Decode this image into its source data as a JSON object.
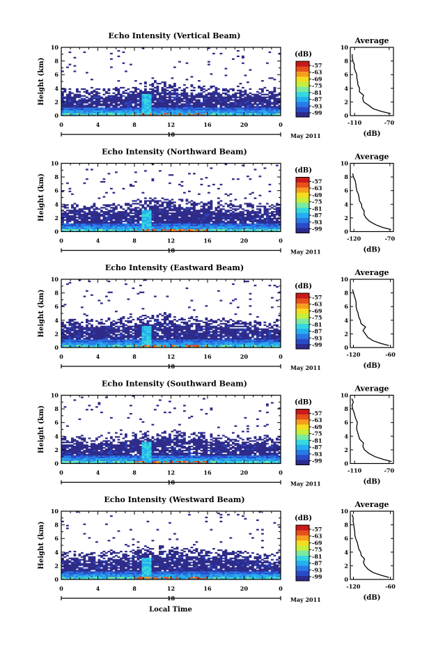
{
  "footer": {
    "month_label": "May 2011",
    "xlabel": "Local Time"
  },
  "colorbar": {
    "unit": "(dB)",
    "tick_labels": [
      "-57",
      "-63",
      "-69",
      "-75",
      "-81",
      "-87",
      "-93",
      "-99"
    ],
    "colors": [
      "#2e2b8a",
      "#2a4bc8",
      "#2a7ae6",
      "#25aef0",
      "#35d8e0",
      "#7aeaa0",
      "#c6ee3c",
      "#f3dd20",
      "#f69e1c",
      "#e6501c",
      "#c81a1a"
    ]
  },
  "chart_data": [
    {
      "type": "heatmap",
      "title": "Echo Intensity (Vertical Beam)",
      "xlabel": "",
      "ylabel": "Height (km)",
      "x_ticks": [
        "0",
        "4",
        "8",
        "12",
        "16",
        "20",
        "0"
      ],
      "date_label": "18",
      "y_ticks": [
        "0",
        "2",
        "4",
        "6",
        "8",
        "10"
      ],
      "xlim": [
        0,
        24
      ],
      "ylim": [
        0,
        10
      ],
      "profile": {
        "title": "Average",
        "xlabel": "(dB)",
        "x_ticks": [
          "-110",
          "-70"
        ],
        "xlim": [
          -115,
          -65
        ],
        "points": [
          [
            -68,
            0.3
          ],
          [
            -78,
            0.6
          ],
          [
            -88,
            1.0
          ],
          [
            -94,
            1.5
          ],
          [
            -99,
            2.0
          ],
          [
            -101,
            2.5
          ],
          [
            -100,
            3.0
          ],
          [
            -104,
            3.5
          ],
          [
            -104,
            4.0
          ],
          [
            -106,
            4.5
          ],
          [
            -107,
            5.0
          ],
          [
            -108,
            5.5
          ],
          [
            -108,
            6.0
          ],
          [
            -109,
            6.5
          ],
          [
            -110,
            7.0
          ],
          [
            -111,
            7.5
          ],
          [
            -112,
            8.0
          ],
          [
            -113,
            8.5
          ],
          [
            -113,
            9.0
          ]
        ]
      }
    },
    {
      "type": "heatmap",
      "title": "Echo Intensity (Northward Beam)",
      "xlabel": "",
      "ylabel": "Height (km)",
      "x_ticks": [
        "0",
        "4",
        "8",
        "12",
        "16",
        "20",
        "0"
      ],
      "date_label": "18",
      "y_ticks": [
        "0",
        "2",
        "4",
        "6",
        "8",
        "10"
      ],
      "xlim": [
        0,
        24
      ],
      "ylim": [
        0,
        10
      ],
      "profile": {
        "title": "Average",
        "xlabel": "(dB)",
        "x_ticks": [
          "-120",
          "-70"
        ],
        "xlim": [
          -125,
          -65
        ],
        "points": [
          [
            -68,
            0.3
          ],
          [
            -80,
            0.6
          ],
          [
            -90,
            1.0
          ],
          [
            -98,
            1.5
          ],
          [
            -103,
            2.0
          ],
          [
            -106,
            2.5
          ],
          [
            -105,
            3.0
          ],
          [
            -109,
            3.5
          ],
          [
            -110,
            4.0
          ],
          [
            -112,
            4.5
          ],
          [
            -113,
            5.0
          ],
          [
            -114,
            5.5
          ],
          [
            -116,
            6.0
          ],
          [
            -117,
            6.5
          ],
          [
            -118,
            7.0
          ],
          [
            -119,
            7.5
          ],
          [
            -120,
            8.0
          ],
          [
            -121,
            8.5
          ]
        ]
      }
    },
    {
      "type": "heatmap",
      "title": "Echo Intensity (Eastward Beam)",
      "xlabel": "",
      "ylabel": "Height (km)",
      "x_ticks": [
        "0",
        "4",
        "8",
        "12",
        "16",
        "20",
        "0"
      ],
      "date_label": "18",
      "y_ticks": [
        "0",
        "2",
        "4",
        "6",
        "8",
        "10"
      ],
      "xlim": [
        0,
        24
      ],
      "ylim": [
        0,
        10
      ],
      "profile": {
        "title": "Average",
        "xlabel": "(dB)",
        "x_ticks": [
          "-120",
          "-60"
        ],
        "xlim": [
          -125,
          -55
        ],
        "points": [
          [
            -62,
            0.3
          ],
          [
            -75,
            0.6
          ],
          [
            -88,
            1.0
          ],
          [
            -96,
            1.5
          ],
          [
            -101,
            2.0
          ],
          [
            -104,
            2.5
          ],
          [
            -100,
            3.0
          ],
          [
            -107,
            3.5
          ],
          [
            -109,
            4.0
          ],
          [
            -111,
            4.5
          ],
          [
            -112,
            5.0
          ],
          [
            -114,
            5.5
          ],
          [
            -115,
            6.0
          ],
          [
            -116,
            6.5
          ],
          [
            -117,
            7.0
          ],
          [
            -119,
            7.5
          ],
          [
            -120,
            8.0
          ],
          [
            -121,
            8.5
          ]
        ]
      }
    },
    {
      "type": "heatmap",
      "title": "Echo Intensity (Southward Beam)",
      "xlabel": "",
      "ylabel": "Height (km)",
      "x_ticks": [
        "0",
        "4",
        "8",
        "12",
        "16",
        "20",
        "0"
      ],
      "date_label": "18",
      "y_ticks": [
        "0",
        "2",
        "4",
        "6",
        "8",
        "10"
      ],
      "xlim": [
        0,
        24
      ],
      "ylim": [
        0,
        10
      ],
      "profile": {
        "title": "Average",
        "xlabel": "(dB)",
        "x_ticks": [
          "-110",
          "-70"
        ],
        "xlim": [
          -115,
          -65
        ],
        "points": [
          [
            -67,
            0.3
          ],
          [
            -77,
            0.6
          ],
          [
            -87,
            1.0
          ],
          [
            -94,
            1.5
          ],
          [
            -98,
            2.0
          ],
          [
            -101,
            2.5
          ],
          [
            -100,
            3.0
          ],
          [
            -104,
            3.5
          ],
          [
            -105,
            4.0
          ],
          [
            -106,
            4.5
          ],
          [
            -107,
            5.0
          ],
          [
            -108,
            5.5
          ],
          [
            -107,
            6.0
          ],
          [
            -109,
            6.5
          ],
          [
            -110,
            7.0
          ],
          [
            -111,
            7.5
          ],
          [
            -112,
            8.0
          ],
          [
            -113,
            8.5
          ],
          [
            -112,
            9.0
          ],
          [
            -113,
            9.5
          ]
        ]
      }
    },
    {
      "type": "heatmap",
      "title": "Echo Intensity (Westward Beam)",
      "xlabel": "",
      "ylabel": "Height (km)",
      "x_ticks": [
        "0",
        "4",
        "8",
        "12",
        "16",
        "20",
        "0"
      ],
      "date_label": "18",
      "y_ticks": [
        "0",
        "2",
        "4",
        "6",
        "8",
        "10"
      ],
      "xlim": [
        0,
        24
      ],
      "ylim": [
        0,
        10
      ],
      "profile": {
        "title": "Average",
        "xlabel": "(dB)",
        "x_ticks": [
          "-120",
          "-60"
        ],
        "xlim": [
          -125,
          -55
        ],
        "points": [
          [
            -62,
            0.3
          ],
          [
            -74,
            0.6
          ],
          [
            -88,
            1.0
          ],
          [
            -96,
            1.5
          ],
          [
            -101,
            2.0
          ],
          [
            -104,
            2.5
          ],
          [
            -101,
            3.0
          ],
          [
            -107,
            3.5
          ],
          [
            -109,
            4.0
          ],
          [
            -111,
            4.5
          ],
          [
            -113,
            5.0
          ],
          [
            -114,
            5.5
          ],
          [
            -116,
            6.0
          ],
          [
            -117,
            6.5
          ],
          [
            -118,
            7.0
          ],
          [
            -119,
            7.5
          ],
          [
            -120,
            8.0
          ],
          [
            -121,
            8.5
          ],
          [
            -121,
            9.0
          ],
          [
            -122,
            9.5
          ]
        ]
      }
    }
  ]
}
